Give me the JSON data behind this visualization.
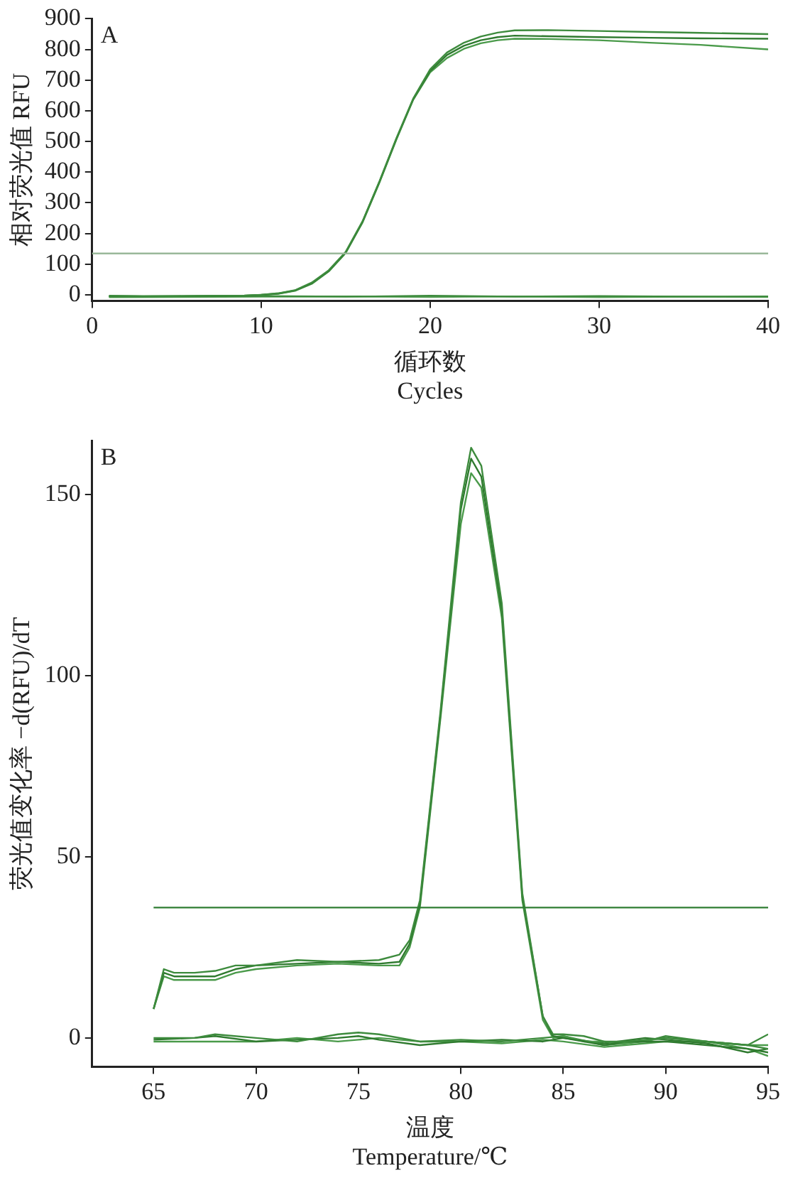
{
  "chart_data": [
    {
      "type": "line",
      "annotations": [
        "A"
      ],
      "xlabel": "循环数\nCycles",
      "ylabel": "相对荧光值 RFU",
      "xlim": [
        0,
        40
      ],
      "xticks": [
        0,
        10,
        20,
        30,
        40
      ],
      "ylim": [
        -20,
        900
      ],
      "yticks": [
        0,
        100,
        200,
        300,
        400,
        500,
        600,
        700,
        800,
        900
      ],
      "grid": false,
      "legend": false,
      "marker": "none",
      "line_style": "solid",
      "ref_lines": [
        {
          "axis": "y",
          "value": 135,
          "color": "#9ab89a"
        }
      ],
      "series": [
        {
          "color": "#3d8b3d",
          "x": [
            1,
            3,
            5,
            7,
            9,
            10,
            11,
            12,
            13,
            14,
            15,
            16,
            17,
            18,
            19,
            20,
            21,
            22,
            23,
            24,
            25,
            27,
            30,
            33,
            36,
            40
          ],
          "values": [
            -3,
            -4,
            -4,
            -3,
            -2,
            0,
            5,
            15,
            40,
            80,
            140,
            240,
            370,
            510,
            640,
            735,
            790,
            822,
            842,
            855,
            862,
            863,
            860,
            857,
            854,
            850
          ]
        },
        {
          "color": "#2f7a2f",
          "x": [
            1,
            3,
            5,
            7,
            9,
            10,
            11,
            12,
            13,
            14,
            15,
            16,
            17,
            18,
            19,
            20,
            21,
            22,
            23,
            24,
            25,
            27,
            30,
            33,
            36,
            40
          ],
          "values": [
            -4,
            -5,
            -4,
            -4,
            -3,
            0,
            4,
            14,
            38,
            78,
            138,
            238,
            368,
            508,
            638,
            730,
            782,
            812,
            830,
            840,
            845,
            843,
            840,
            838,
            836,
            835
          ]
        },
        {
          "color": "#4a9a4a",
          "x": [
            1,
            3,
            5,
            7,
            9,
            10,
            11,
            12,
            13,
            14,
            15,
            16,
            17,
            18,
            19,
            20,
            21,
            22,
            23,
            24,
            25,
            27,
            30,
            33,
            36,
            40
          ],
          "values": [
            -5,
            -5,
            -5,
            -4,
            -3,
            -1,
            3,
            13,
            36,
            76,
            136,
            236,
            366,
            506,
            636,
            725,
            772,
            802,
            820,
            830,
            835,
            834,
            830,
            822,
            815,
            800
          ]
        },
        {
          "color": "#3d8b3d",
          "x": [
            1,
            5,
            10,
            15,
            20,
            25,
            30,
            35,
            40
          ],
          "values": [
            -6,
            -5,
            -4,
            -6,
            -3,
            -6,
            -4,
            -6,
            -5
          ]
        },
        {
          "color": "#5aa05a",
          "x": [
            1,
            5,
            10,
            15,
            20,
            25,
            30,
            35,
            40
          ],
          "values": [
            -8,
            -7,
            -6,
            -5,
            -7,
            -5,
            -8,
            -6,
            -7
          ]
        }
      ]
    },
    {
      "type": "line",
      "annotations": [
        "B"
      ],
      "xlabel": "温度\nTemperature/℃",
      "ylabel": "荧光值变化率 −d(RFU)/dT",
      "xlim": [
        62,
        95
      ],
      "xticks": [
        65,
        70,
        75,
        80,
        85,
        90,
        95
      ],
      "ylim": [
        -8,
        165
      ],
      "yticks": [
        0,
        50,
        100,
        150
      ],
      "grid": false,
      "legend": false,
      "marker": "none",
      "line_style": "solid",
      "ref_lines": [
        {
          "axis": "y",
          "value": 36,
          "color": "#2e7d32"
        }
      ],
      "series": [
        {
          "color": "#3d8b3d",
          "x": [
            65,
            65.5,
            66,
            67,
            68,
            69,
            70,
            72,
            74,
            76,
            77,
            77.5,
            78,
            79,
            80,
            80.5,
            81,
            82,
            83,
            84,
            84.5,
            85,
            86,
            87,
            88,
            90,
            92,
            94,
            95
          ],
          "values": [
            8,
            19,
            18,
            18,
            18.5,
            20,
            20,
            21.5,
            21,
            21.5,
            23,
            27,
            38,
            90,
            148,
            163,
            158,
            120,
            40,
            6,
            1,
            1,
            0.5,
            -1,
            -1,
            0,
            -1,
            -2,
            -3
          ]
        },
        {
          "color": "#2f7a2f",
          "x": [
            65,
            65.5,
            66,
            67,
            68,
            69,
            70,
            72,
            74,
            76,
            77,
            77.5,
            78,
            79,
            80,
            80.5,
            81,
            82,
            83,
            84,
            84.5,
            85,
            86,
            87,
            88,
            90,
            92,
            94,
            95
          ],
          "values": [
            8,
            18,
            17,
            17,
            17,
            19,
            20,
            20.5,
            21,
            20.5,
            21,
            26,
            37,
            89,
            146,
            160,
            155,
            118,
            39,
            6,
            0.5,
            0,
            -1,
            -2,
            -1,
            -1,
            -2,
            -3,
            -4
          ]
        },
        {
          "color": "#4a9a4a",
          "x": [
            65,
            65.5,
            66,
            67,
            68,
            69,
            70,
            72,
            74,
            76,
            77,
            77.5,
            78,
            79,
            80,
            80.5,
            81,
            82,
            83,
            84,
            84.5,
            85,
            86,
            87,
            88,
            90,
            92,
            94,
            95
          ],
          "values": [
            8,
            17,
            16,
            16,
            16,
            18,
            19,
            20,
            20.5,
            20,
            20,
            25,
            36,
            88,
            142,
            156,
            152,
            116,
            38,
            5,
            0,
            0.5,
            -1,
            -1,
            -1.5,
            0,
            -1,
            -2,
            -2
          ]
        },
        {
          "color": "#3d8b3d",
          "x": [
            65,
            67,
            68,
            70,
            72,
            74,
            75,
            76,
            78,
            80,
            82,
            84,
            85,
            87,
            89,
            90,
            92,
            94,
            95
          ],
          "values": [
            0,
            0,
            1,
            0,
            -1,
            1,
            1.5,
            1,
            -1,
            -0.5,
            -1,
            0,
            0.5,
            -2,
            -1,
            0.5,
            -1,
            -2,
            1
          ]
        },
        {
          "color": "#2f7a2f",
          "x": [
            65,
            67,
            68,
            70,
            72,
            74,
            75,
            76,
            78,
            80,
            82,
            84,
            85,
            87,
            89,
            90,
            92,
            94,
            95
          ],
          "values": [
            -0.5,
            0,
            0.5,
            -1,
            -0.5,
            0,
            0.5,
            -0.5,
            -2,
            -1,
            -0.5,
            -1,
            0,
            -1.5,
            0,
            -0.5,
            -1.5,
            -4,
            -3
          ]
        },
        {
          "color": "#4a9a4a",
          "x": [
            65,
            67,
            68,
            70,
            72,
            74,
            75,
            76,
            78,
            80,
            82,
            84,
            85,
            87,
            89,
            90,
            92,
            94,
            95
          ],
          "values": [
            -1,
            -1,
            -1,
            -1,
            0,
            -1,
            -0.5,
            0,
            -1,
            -1,
            -1.5,
            -0.5,
            -1,
            -2.5,
            -1.5,
            -1,
            -1,
            -3,
            -5
          ]
        }
      ]
    }
  ]
}
